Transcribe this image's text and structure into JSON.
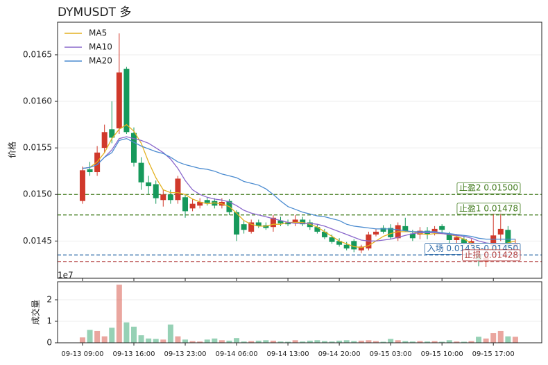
{
  "chart_data": [
    {
      "type": "candlestick",
      "title": "DYMUSDT  多",
      "ylabel": "价格",
      "categories": [
        "09-13 09:00",
        null,
        null,
        null,
        null,
        null,
        null,
        "09-13 16:00",
        null,
        null,
        null,
        null,
        null,
        null,
        "09-13 23:00",
        null,
        null,
        null,
        null,
        null,
        null,
        "09-14 06:00",
        null,
        null,
        null,
        null,
        null,
        null,
        "09-14 13:00",
        null,
        null,
        null,
        null,
        null,
        null,
        "09-14 20:00",
        null,
        null,
        null,
        null,
        null,
        null,
        "09-15 03:00",
        null,
        null,
        null,
        null,
        null,
        null,
        "09-15 10:00",
        null,
        null,
        null,
        null,
        null,
        null,
        "09-15 17:00",
        null,
        null,
        null
      ],
      "open": [
        0.01493,
        0.01527,
        0.01524,
        0.0155,
        0.0157,
        0.01571,
        0.01635,
        0.01566,
        0.01534,
        0.01513,
        0.01511,
        0.01494,
        0.015,
        0.01494,
        0.01497,
        0.01485,
        0.01488,
        0.01494,
        0.01493,
        0.01488,
        0.01493,
        0.01481,
        0.01468,
        0.0146,
        0.0147,
        0.01467,
        0.01465,
        0.01472,
        0.0147,
        0.01469,
        0.01473,
        0.0147,
        0.01465,
        0.0146,
        0.01454,
        0.0145,
        0.01446,
        0.0145,
        0.0144,
        0.01442,
        0.01457,
        0.01464,
        0.01464,
        0.01453,
        0.01466,
        0.01458,
        0.01457,
        0.01461,
        0.0146,
        0.01466,
        0.01458,
        0.01451,
        0.01452,
        0.01446,
        0.01437,
        0.01428,
        0.01445,
        0.01457,
        0.01462,
        0.01444
      ],
      "high": [
        0.0153,
        0.01535,
        0.01552,
        0.01575,
        0.016,
        0.01673,
        0.01637,
        0.01572,
        0.0154,
        0.0152,
        0.01515,
        0.01505,
        0.01505,
        0.0152,
        0.015,
        0.01495,
        0.01496,
        0.01497,
        0.01496,
        0.01496,
        0.01495,
        0.01483,
        0.01472,
        0.01473,
        0.01473,
        0.0147,
        0.01478,
        0.01476,
        0.01473,
        0.01478,
        0.01476,
        0.01473,
        0.01468,
        0.01463,
        0.01457,
        0.01453,
        0.01449,
        0.01452,
        0.01446,
        0.0146,
        0.01463,
        0.01467,
        0.01468,
        0.0147,
        0.01475,
        0.01462,
        0.01465,
        0.01465,
        0.01466,
        0.01468,
        0.0146,
        0.01457,
        0.01455,
        0.01452,
        0.0144,
        0.01434,
        0.0148,
        0.01483,
        0.01466,
        0.01452
      ],
      "low": [
        0.0149,
        0.0152,
        0.0152,
        0.01545,
        0.01555,
        0.01565,
        0.01565,
        0.0153,
        0.01505,
        0.015,
        0.0149,
        0.01487,
        0.0149,
        0.0149,
        0.01475,
        0.01482,
        0.01485,
        0.01488,
        0.01485,
        0.01485,
        0.01478,
        0.0145,
        0.01458,
        0.01458,
        0.01464,
        0.01462,
        0.0146,
        0.01466,
        0.01466,
        0.01466,
        0.01466,
        0.01462,
        0.01458,
        0.01452,
        0.01447,
        0.01444,
        0.0144,
        0.01438,
        0.01437,
        0.0144,
        0.01455,
        0.01458,
        0.01452,
        0.0145,
        0.0146,
        0.0145,
        0.01452,
        0.01452,
        0.01456,
        0.01458,
        0.01448,
        0.01447,
        0.01445,
        0.01444,
        0.01423,
        0.01422,
        0.0144,
        0.0145,
        0.0144,
        0.0144
      ],
      "close": [
        0.01526,
        0.01524,
        0.01545,
        0.01567,
        0.01561,
        0.01631,
        0.01567,
        0.01534,
        0.01513,
        0.01509,
        0.01496,
        0.015,
        0.01494,
        0.01517,
        0.01482,
        0.0149,
        0.01492,
        0.01491,
        0.01488,
        0.01492,
        0.01481,
        0.01457,
        0.01462,
        0.0147,
        0.01466,
        0.01464,
        0.01475,
        0.01469,
        0.01468,
        0.01473,
        0.01468,
        0.01465,
        0.0146,
        0.01454,
        0.01449,
        0.01446,
        0.01442,
        0.01441,
        0.01444,
        0.01457,
        0.0146,
        0.0146,
        0.01454,
        0.01467,
        0.01461,
        0.01453,
        0.01461,
        0.01457,
        0.01463,
        0.01462,
        0.01451,
        0.01454,
        0.01448,
        0.0145,
        0.0143,
        0.01432,
        0.01456,
        0.01463,
        0.01444,
        0.01448
      ],
      "up_color": "#d0392b",
      "down_color": "#16995b",
      "series": [
        {
          "name": "MA5",
          "color": "#e3b120",
          "values": [
            0.01528,
            0.01529,
            0.01535,
            0.01545,
            0.0156,
            0.0157,
            0.01575,
            0.01568,
            0.01555,
            0.01535,
            0.01518,
            0.01505,
            0.01502,
            0.01502,
            0.015,
            0.01495,
            0.01492,
            0.0149,
            0.01491,
            0.0149,
            0.01487,
            0.0148,
            0.01472,
            0.01468,
            0.01466,
            0.01466,
            0.01468,
            0.01468,
            0.0147,
            0.0147,
            0.0147,
            0.01468,
            0.01465,
            0.0146,
            0.01455,
            0.0145,
            0.01447,
            0.01444,
            0.01443,
            0.01445,
            0.0145,
            0.01455,
            0.01458,
            0.0146,
            0.0146,
            0.0146,
            0.01458,
            0.01457,
            0.01458,
            0.01458,
            0.01457,
            0.01455,
            0.01452,
            0.01448,
            0.01442,
            0.0144,
            0.01442,
            0.01446,
            0.01448,
            0.0145
          ]
        },
        {
          "name": "MA10",
          "color": "#8a68cc",
          "values": [
            0.01528,
            0.01529,
            0.01532,
            0.0154,
            0.01548,
            0.0156,
            0.01562,
            0.0156,
            0.01558,
            0.01555,
            0.0155,
            0.01545,
            0.01538,
            0.01528,
            0.01515,
            0.01505,
            0.015,
            0.01497,
            0.01495,
            0.01494,
            0.01492,
            0.01488,
            0.01483,
            0.0148,
            0.01478,
            0.01476,
            0.01474,
            0.01472,
            0.0147,
            0.01469,
            0.01469,
            0.01469,
            0.01468,
            0.01466,
            0.01463,
            0.0146,
            0.01457,
            0.01454,
            0.01451,
            0.0145,
            0.0145,
            0.01451,
            0.01452,
            0.01454,
            0.01456,
            0.01458,
            0.01459,
            0.01459,
            0.01459,
            0.01458,
            0.01457,
            0.01456,
            0.01455,
            0.01453,
            0.0145,
            0.01448,
            0.01447,
            0.01446,
            0.01446,
            0.01447
          ]
        },
        {
          "name": "MA20",
          "color": "#4a8bd0",
          "values": [
            0.01528,
            0.01529,
            0.01532,
            0.0154,
            0.01545,
            0.01558,
            0.0156,
            0.01556,
            0.01552,
            0.01549,
            0.01546,
            0.01544,
            0.0154,
            0.01535,
            0.01532,
            0.0153,
            0.01528,
            0.01527,
            0.01525,
            0.01522,
            0.0152,
            0.01518,
            0.01514,
            0.01512,
            0.0151,
            0.01506,
            0.015,
            0.01493,
            0.01487,
            0.01484,
            0.01481,
            0.01479,
            0.01477,
            0.01476,
            0.01474,
            0.01472,
            0.01468,
            0.01466,
            0.01465,
            0.01464,
            0.01463,
            0.01463,
            0.01463,
            0.01462,
            0.01461,
            0.0146,
            0.0146,
            0.0146,
            0.0146,
            0.01459,
            0.01458,
            0.01457,
            0.01456,
            0.01455,
            0.01453,
            0.01452,
            0.01452,
            0.01452,
            0.01452,
            0.01452
          ]
        }
      ],
      "hlines": [
        {
          "value": 0.015,
          "label": "止盈2 0.01500",
          "color": "#3f7a1a"
        },
        {
          "value": 0.01478,
          "label": "止盈1 0.01478",
          "color": "#3f7a1a"
        },
        {
          "value": 0.01435,
          "label": "入场 0.01435-0.01450",
          "color": "#2e6aa8"
        },
        {
          "value": 0.01428,
          "label": "止损 0.01428",
          "color": "#b03a3a"
        }
      ],
      "xlim": [
        -3.4,
        62.6
      ],
      "ylim": [
        0.0141,
        0.01685
      ],
      "yticks": [
        0.0145,
        {
          "value": 0.015,
          "label": "0.0150"
        },
        0.0155,
        {
          "value": 0.016,
          "label": "0.0160"
        },
        0.0165
      ],
      "grid": true,
      "legend": "upper left"
    },
    {
      "type": "bar",
      "ylabel": "成交量",
      "offset_label": "1e7",
      "values": [
        0.25,
        0.6,
        0.55,
        0.3,
        0.7,
        2.7,
        0.95,
        0.75,
        0.35,
        0.2,
        0.18,
        0.15,
        0.85,
        0.3,
        0.15,
        0.08,
        0.06,
        0.15,
        0.2,
        0.12,
        0.1,
        0.22,
        0.06,
        0.08,
        0.1,
        0.12,
        0.1,
        0.06,
        0.05,
        0.12,
        0.06,
        0.1,
        0.12,
        0.08,
        0.06,
        0.1,
        0.12,
        0.08,
        0.1,
        0.12,
        0.08,
        0.05,
        0.18,
        0.12,
        0.08,
        0.06,
        0.08,
        0.06,
        0.08,
        0.05,
        0.12,
        0.06,
        0.05,
        0.08,
        0.28,
        0.2,
        0.45,
        0.55,
        0.3,
        0.28
      ],
      "ylim": [
        0,
        2.84
      ],
      "yticks": [
        0,
        1,
        2
      ],
      "grid": true
    }
  ]
}
